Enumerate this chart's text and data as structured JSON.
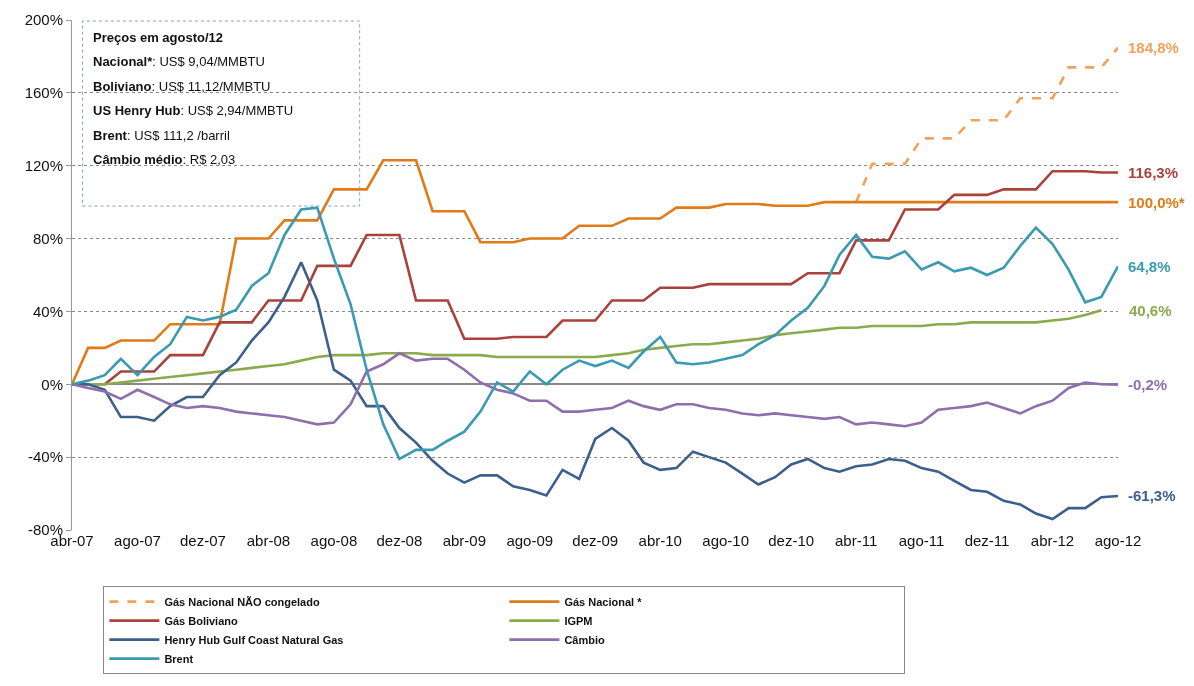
{
  "chart_data": {
    "type": "line",
    "x": [
      "2007-04",
      "2007-05",
      "2007-06",
      "2007-07",
      "2007-08",
      "2007-09",
      "2007-10",
      "2007-11",
      "2007-12",
      "2008-01",
      "2008-02",
      "2008-03",
      "2008-04",
      "2008-05",
      "2008-06",
      "2008-07",
      "2008-08",
      "2008-09",
      "2008-10",
      "2008-11",
      "2008-12",
      "2009-01",
      "2009-02",
      "2009-03",
      "2009-04",
      "2009-05",
      "2009-06",
      "2009-07",
      "2009-08",
      "2009-09",
      "2009-10",
      "2009-11",
      "2009-12",
      "2010-01",
      "2010-02",
      "2010-03",
      "2010-04",
      "2010-05",
      "2010-06",
      "2010-07",
      "2010-08",
      "2010-09",
      "2010-10",
      "2010-11",
      "2010-12",
      "2011-01",
      "2011-02",
      "2011-03",
      "2011-04",
      "2011-05",
      "2011-06",
      "2011-07",
      "2011-08",
      "2011-09",
      "2011-10",
      "2011-11",
      "2011-12",
      "2012-01",
      "2012-02",
      "2012-03",
      "2012-04",
      "2012-05",
      "2012-06",
      "2012-07",
      "2012-08"
    ],
    "series": [
      {
        "name": "Gás Nacional NÃO congelado",
        "color": "#f0a25a",
        "line_style": "dashed",
        "values": [
          null,
          null,
          null,
          null,
          null,
          null,
          null,
          null,
          null,
          null,
          null,
          null,
          null,
          null,
          null,
          null,
          null,
          null,
          null,
          null,
          null,
          null,
          null,
          null,
          null,
          null,
          null,
          null,
          null,
          null,
          null,
          null,
          null,
          null,
          null,
          null,
          null,
          null,
          null,
          null,
          null,
          null,
          null,
          null,
          null,
          null,
          null,
          null,
          100,
          121,
          121,
          121,
          135,
          135,
          135,
          145,
          145,
          145,
          157,
          157,
          157,
          174,
          174,
          174,
          184.8
        ]
      },
      {
        "name": "Gás Nacional *",
        "color": "#e07b17",
        "values": [
          0,
          20,
          20,
          24,
          24,
          24,
          33,
          33,
          33,
          33,
          80,
          80,
          80,
          90,
          90,
          90,
          107,
          107,
          107,
          123,
          123,
          123,
          95,
          95,
          95,
          78,
          78,
          78,
          80,
          80,
          80,
          87,
          87,
          87,
          91,
          91,
          91,
          97,
          97,
          97,
          99,
          99,
          99,
          98,
          98,
          98,
          100,
          100,
          100,
          100,
          100,
          100,
          100,
          100,
          100,
          100,
          100,
          100,
          100,
          100,
          100,
          100,
          100,
          100,
          100
        ]
      },
      {
        "name": "Gás Boliviano",
        "color": "#a9423a",
        "values": [
          0,
          0,
          0,
          7,
          7,
          7,
          16,
          16,
          16,
          34,
          34,
          34,
          46,
          46,
          46,
          65,
          65,
          65,
          82,
          82,
          82,
          46,
          46,
          46,
          25,
          25,
          25,
          26,
          26,
          26,
          35,
          35,
          35,
          46,
          46,
          46,
          53,
          53,
          53,
          55,
          55,
          55,
          55,
          55,
          55,
          61,
          61,
          61,
          79,
          79,
          79,
          96,
          96,
          96,
          104,
          104,
          104,
          107,
          107,
          107,
          117,
          117,
          117,
          116.3,
          116.3
        ]
      },
      {
        "name": "IGPM",
        "color": "#8aaa4c",
        "values": [
          0,
          0,
          0,
          1,
          2,
          3,
          4,
          5,
          6,
          7,
          8,
          9,
          10,
          11,
          13,
          15,
          16,
          16,
          16,
          17,
          17,
          17,
          16,
          16,
          16,
          16,
          15,
          15,
          15,
          15,
          15,
          15,
          15,
          16,
          17,
          19,
          20,
          21,
          22,
          22,
          23,
          24,
          25,
          27,
          28,
          29,
          30,
          31,
          31,
          32,
          32,
          32,
          32,
          33,
          33,
          34,
          34,
          34,
          34,
          34,
          35,
          36,
          38,
          40.6,
          null
        ]
      },
      {
        "name": "Henry Hub Gulf Coast Natural Gas",
        "color": "#3c5f8c",
        "values": [
          0,
          0,
          -3,
          -18,
          -18,
          -20,
          -12,
          -7,
          -7,
          5,
          12,
          24,
          34,
          48,
          67,
          46,
          8,
          2,
          -12,
          -12,
          -24,
          -32,
          -42,
          -49,
          -54,
          -50,
          -50,
          -56,
          -58,
          -61,
          -47,
          -52,
          -30,
          -24,
          -31,
          -43,
          -47,
          -46,
          -37,
          -40,
          -43,
          -49,
          -55,
          -51,
          -44,
          -41,
          -46,
          -48,
          -45,
          -44,
          -41,
          -42,
          -46,
          -48,
          -53,
          -58,
          -59,
          -64,
          -66,
          -71,
          -74,
          -68,
          -68,
          -62,
          -61.3
        ]
      },
      {
        "name": "Câmbio",
        "color": "#8e6fae",
        "values": [
          0,
          -2,
          -4,
          -8,
          -3,
          -7,
          -11,
          -13,
          -12,
          -13,
          -15,
          -16,
          -17,
          -18,
          -20,
          -22,
          -21,
          -11,
          7,
          11,
          17,
          13,
          14,
          14,
          8,
          1,
          -3,
          -5,
          -9,
          -9,
          -15,
          -15,
          -14,
          -13,
          -9,
          -12,
          -14,
          -11,
          -11,
          -13,
          -14,
          -16,
          -17,
          -16,
          -17,
          -18,
          -19,
          -18,
          -22,
          -21,
          -22,
          -23,
          -21,
          -14,
          -13,
          -12,
          -10,
          -13,
          -16,
          -12,
          -9,
          -2,
          1,
          0,
          -0.2
        ]
      },
      {
        "name": "Brent",
        "color": "#3a9ab0",
        "values": [
          0,
          2,
          5,
          14,
          5,
          15,
          22,
          37,
          35,
          37,
          41,
          54,
          61,
          82,
          96,
          97,
          69,
          44,
          8,
          -22,
          -41,
          -36,
          -36,
          -31,
          -26,
          -15,
          1,
          -4,
          7,
          0,
          8,
          13,
          10,
          13,
          9,
          18,
          26,
          12,
          11,
          12,
          14,
          16,
          22,
          27,
          35,
          42,
          54,
          71,
          82,
          70,
          69,
          73,
          63,
          67,
          62,
          64,
          60,
          64,
          76,
          86,
          77,
          63,
          45,
          48,
          64.8
        ]
      }
    ],
    "xlim": [
      "2007-04",
      "2012-08"
    ],
    "xticks": [
      {
        "value": "2007-04",
        "label": "abr-07"
      },
      {
        "value": "2007-08",
        "label": "ago-07"
      },
      {
        "value": "2007-12",
        "label": "dez-07"
      },
      {
        "value": "2008-04",
        "label": "abr-08"
      },
      {
        "value": "2008-08",
        "label": "ago-08"
      },
      {
        "value": "2008-12",
        "label": "dez-08"
      },
      {
        "value": "2009-04",
        "label": "abr-09"
      },
      {
        "value": "2009-08",
        "label": "ago-09"
      },
      {
        "value": "2009-12",
        "label": "dez-09"
      },
      {
        "value": "2010-04",
        "label": "abr-10"
      },
      {
        "value": "2010-08",
        "label": "ago-10"
      },
      {
        "value": "2010-12",
        "label": "dez-10"
      },
      {
        "value": "2011-04",
        "label": "abr-11"
      },
      {
        "value": "2011-08",
        "label": "ago-11"
      },
      {
        "value": "2011-12",
        "label": "dez-11"
      },
      {
        "value": "2012-04",
        "label": "abr-12"
      },
      {
        "value": "2012-08",
        "label": "ago-12"
      }
    ],
    "ylim": [
      -80,
      200
    ],
    "yticks": [
      {
        "value": -80,
        "label": "-80%"
      },
      {
        "value": -40,
        "label": "-40%"
      },
      {
        "value": 0,
        "label": "0%"
      },
      {
        "value": 40,
        "label": "40%"
      },
      {
        "value": 80,
        "label": "80%"
      },
      {
        "value": 120,
        "label": "120%"
      },
      {
        "value": 160,
        "label": "160%"
      },
      {
        "value": 200,
        "label": "200%"
      }
    ],
    "grid": "y",
    "legend": "bottom",
    "marker": "none",
    "annotations": [
      "Preços em agosto/12",
      "Nacional*: US$ 9,04/MMBTU",
      "Boliviano: US$ 11,12/MMBTU",
      "US Henry Hub: US$ 2,94/MMBTU",
      "Brent: US$ 111,2 /barril",
      "Câmbio médio: R$ 2,03",
      {
        "text": "184,8%",
        "x": "2012-08",
        "y": 184.8
      },
      {
        "text": "116,3%",
        "x": "2012-08",
        "y": 116.3
      },
      {
        "text": "100,0%*",
        "x": "2012-08",
        "y": 100
      },
      {
        "text": "64,8%",
        "x": "2012-08",
        "y": 64.8
      },
      {
        "text": "40,6%",
        "x": "2012-07",
        "y": 40.6
      },
      {
        "text": "-0,2%",
        "x": "2012-08",
        "y": -0.2
      },
      {
        "text": "-61,3%",
        "x": "2012-08",
        "y": -61.3
      }
    ]
  }
}
